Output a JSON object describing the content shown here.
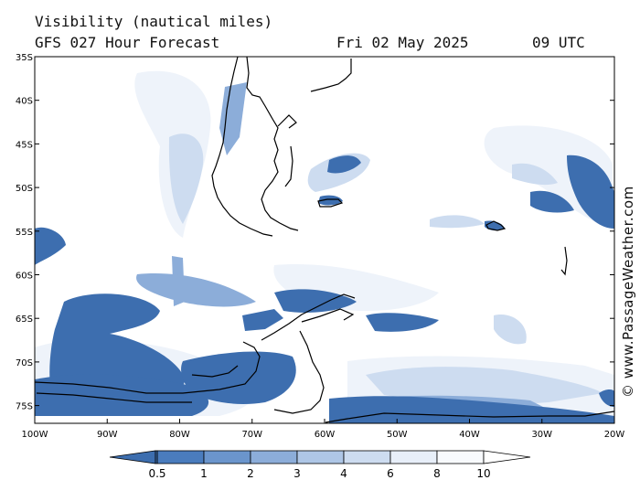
{
  "title_line1": "Visibility (nautical miles)",
  "title_line2": "GFS 027 Hour Forecast",
  "date": "Fri 02 May 2025",
  "time": "09 UTC",
  "watermark": "© www.PassageWeather.com",
  "map": {
    "lat_labels": [
      "35S",
      "40S",
      "45S",
      "50S",
      "55S",
      "60S",
      "65S",
      "70S",
      "75S"
    ],
    "lon_labels": [
      "100W",
      "90W",
      "80W",
      "70W",
      "60W",
      "50W",
      "40W",
      "30W",
      "20W"
    ]
  },
  "legend": {
    "ticks": [
      "0.5",
      "1",
      "2",
      "3",
      "4",
      "6",
      "8",
      "10"
    ],
    "colors": [
      "#3d6eaf",
      "#4a7cbd",
      "#6b95cc",
      "#8cadd9",
      "#aec6e6",
      "#cddcf0",
      "#e8eff9",
      "#f8fafd",
      "#ffffff"
    ]
  }
}
